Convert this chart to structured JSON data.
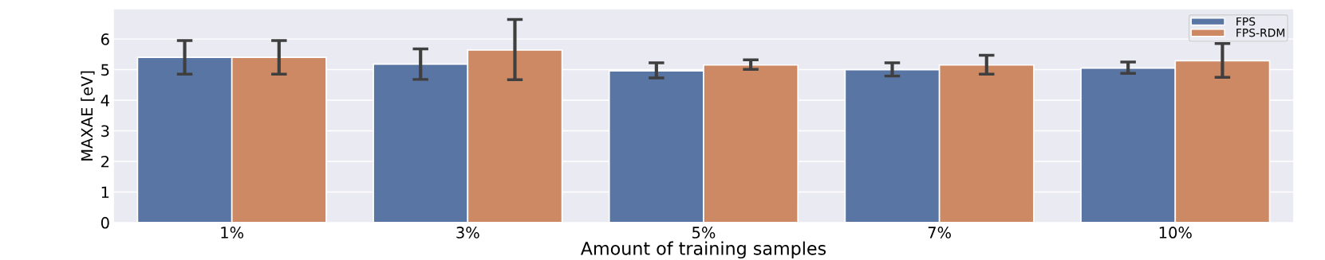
{
  "chart_data": {
    "type": "bar",
    "xlabel": "Amount of training samples",
    "ylabel": "MAXAE [eV]",
    "categories": [
      "1%",
      "3%",
      "5%",
      "7%",
      "10%"
    ],
    "series": [
      {
        "name": "FPS",
        "color": "#5875a4",
        "values": [
          5.4,
          5.18,
          4.96,
          5.0,
          5.05
        ],
        "errors": [
          [
            4.85,
            5.95
          ],
          [
            4.68,
            5.68
          ],
          [
            4.73,
            5.22
          ],
          [
            4.79,
            5.22
          ],
          [
            4.88,
            5.25
          ]
        ]
      },
      {
        "name": "FPS-RDM",
        "color": "#cc8963",
        "values": [
          5.4,
          5.64,
          5.15,
          5.15,
          5.29
        ],
        "errors": [
          [
            4.85,
            5.95
          ],
          [
            4.67,
            6.64
          ],
          [
            5.01,
            5.32
          ],
          [
            4.85,
            5.47
          ],
          [
            4.75,
            5.85
          ]
        ]
      }
    ],
    "ylim": [
      0,
      6.97
    ],
    "yticks": [
      0,
      1,
      2,
      3,
      4,
      5,
      6
    ],
    "grid": "y",
    "legend": "top right"
  }
}
